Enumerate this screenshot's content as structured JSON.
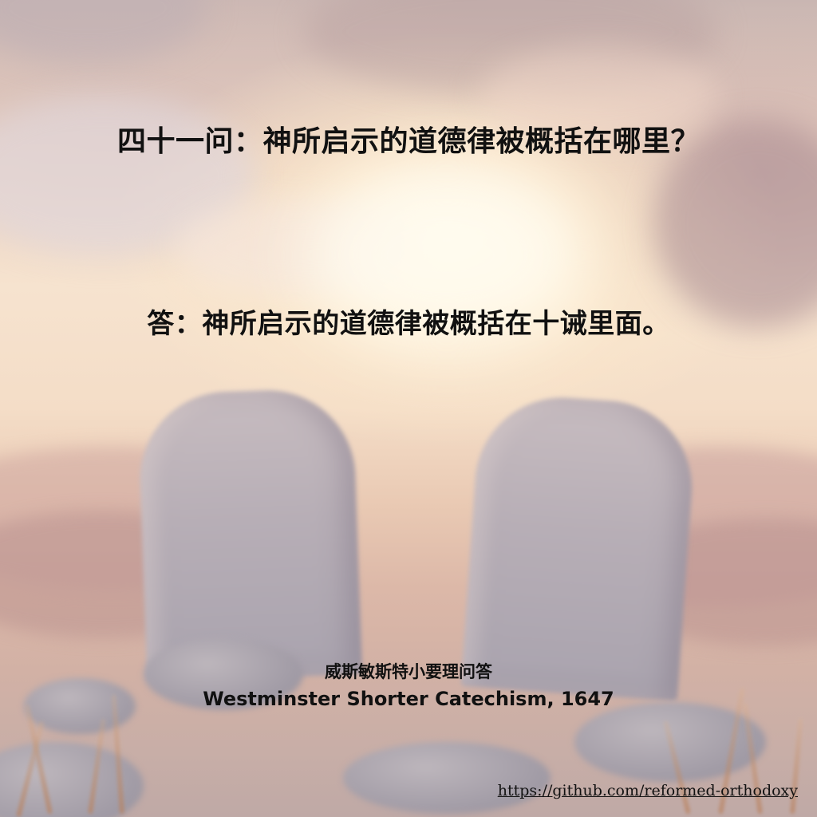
{
  "question": "四十一问：神所启示的道德律被概括在哪里？",
  "answer": "答：神所启示的道德律被概括在十诫里面。",
  "source": {
    "chinese_title": "威斯敏斯特小要理问答",
    "english_title": "Westminster Shorter Catechism, 1647"
  },
  "link": {
    "url_text": "https://github.com/reformed-orthodoxy"
  },
  "colors": {
    "text": "#111111",
    "sky_light": "#f6e3cf",
    "tablet_stone": "#b7aeb6"
  }
}
